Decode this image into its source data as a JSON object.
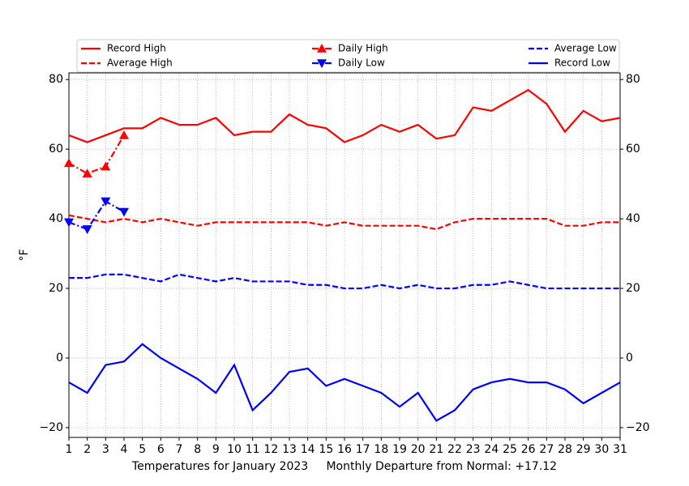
{
  "chart_data": {
    "type": "line",
    "xlabel": "Temperatures for January 2023     Monthly Departure from Normal: +17.12",
    "ylabel": "°F",
    "x": [
      1,
      2,
      3,
      4,
      5,
      6,
      7,
      8,
      9,
      10,
      11,
      12,
      13,
      14,
      15,
      16,
      17,
      18,
      19,
      20,
      21,
      22,
      23,
      24,
      25,
      26,
      27,
      28,
      29,
      30,
      31
    ],
    "xlim": [
      1,
      31
    ],
    "xticks": [
      1,
      2,
      3,
      4,
      5,
      6,
      7,
      8,
      9,
      10,
      11,
      12,
      13,
      14,
      15,
      16,
      17,
      18,
      19,
      20,
      21,
      22,
      23,
      24,
      25,
      26,
      27,
      28,
      29,
      30,
      31
    ],
    "ylim": [
      -22.8,
      81.9
    ],
    "yticks": [
      {
        "value": -20,
        "label": "−20"
      },
      0,
      20,
      40,
      60,
      80
    ],
    "grid": true,
    "legend": "top",
    "series": [
      {
        "name": "Record High",
        "color": "#ff0000",
        "dash": "solid",
        "values": [
          64,
          62,
          64,
          66,
          66,
          69,
          67,
          67,
          69,
          64,
          65,
          65,
          70,
          67,
          66,
          62,
          64,
          67,
          65,
          67,
          63,
          64,
          72,
          71,
          74,
          77,
          73,
          65,
          71,
          68,
          69
        ]
      },
      {
        "name": "Average High",
        "color": "#ff0000",
        "dash": "dashed",
        "values": [
          41,
          40,
          39,
          40,
          39,
          40,
          39,
          38,
          39,
          39,
          39,
          39,
          39,
          39,
          38,
          39,
          38,
          38,
          38,
          38,
          37,
          39,
          40,
          40,
          40,
          40,
          40,
          38,
          38,
          39,
          39
        ]
      },
      {
        "name": "Daily High",
        "color": "#ff0000",
        "dash": "dashdot",
        "marker": "triangle-up",
        "values": [
          56,
          53,
          55,
          64,
          null,
          null,
          null,
          null,
          null,
          null,
          null,
          null,
          null,
          null,
          null,
          null,
          null,
          null,
          null,
          null,
          null,
          null,
          null,
          null,
          null,
          null,
          null,
          null,
          null,
          null,
          null
        ]
      },
      {
        "name": "Daily Low",
        "color": "#0000ff",
        "dash": "dashdot",
        "marker": "triangle-down",
        "values": [
          39,
          37,
          45,
          42,
          null,
          null,
          null,
          null,
          null,
          null,
          null,
          null,
          null,
          null,
          null,
          null,
          null,
          null,
          null,
          null,
          null,
          null,
          null,
          null,
          null,
          null,
          null,
          null,
          null,
          null,
          null
        ]
      },
      {
        "name": "Average Low",
        "color": "#0000ff",
        "dash": "dashed",
        "values": [
          23,
          23,
          24,
          24,
          23,
          22,
          24,
          23,
          22,
          23,
          22,
          22,
          22,
          21,
          21,
          20,
          20,
          21,
          20,
          21,
          20,
          20,
          21,
          21,
          22,
          21,
          20,
          20,
          20,
          20,
          20
        ]
      },
      {
        "name": "Record Low",
        "color": "#0000ff",
        "dash": "solid",
        "values": [
          -7,
          -10,
          -2,
          -1,
          4,
          0,
          -3,
          -6,
          -10,
          -2,
          -15,
          -10,
          -4,
          -3,
          -8,
          -6,
          -8,
          -10,
          -14,
          -10,
          -18,
          -15,
          -9,
          -7,
          -6,
          -7,
          -7,
          -9,
          -13,
          -10,
          -7
        ]
      }
    ]
  }
}
